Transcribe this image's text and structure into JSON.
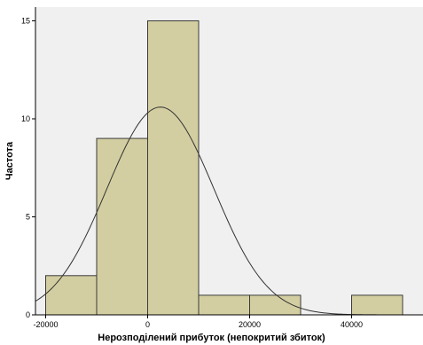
{
  "chart_data": {
    "type": "histogram",
    "xlabel": "Нерозподілений прибуток (непокритий збиток)",
    "ylabel": "Частота",
    "x_ticks": [
      -20000,
      0,
      20000,
      40000
    ],
    "x_tick_labels": [
      "-20000",
      "0",
      "20000",
      "40000"
    ],
    "y_ticks": [
      0,
      5,
      10,
      15
    ],
    "y_tick_labels": [
      "0",
      "5",
      "10",
      "15"
    ],
    "xlim": [
      -22000,
      54000
    ],
    "ylim": [
      0,
      15.7
    ],
    "bins": [
      {
        "start": -20000,
        "end": -10000,
        "count": 2
      },
      {
        "start": -10000,
        "end": 0,
        "count": 9
      },
      {
        "start": 0,
        "end": 10000,
        "count": 15
      },
      {
        "start": 10000,
        "end": 20000,
        "count": 1
      },
      {
        "start": 20000,
        "end": 30000,
        "count": 1
      },
      {
        "start": 30000,
        "end": 40000,
        "count": 0
      },
      {
        "start": 40000,
        "end": 50000,
        "count": 1
      }
    ],
    "normal_curve": {
      "mean": 2500,
      "sd": 10500,
      "peak": 10.6
    },
    "colors": {
      "plot_background": "#f0f0f0",
      "bar_fill": "#d3cea1",
      "bar_stroke": "#3a3a3a",
      "curve": "#333333"
    },
    "grid": false
  }
}
